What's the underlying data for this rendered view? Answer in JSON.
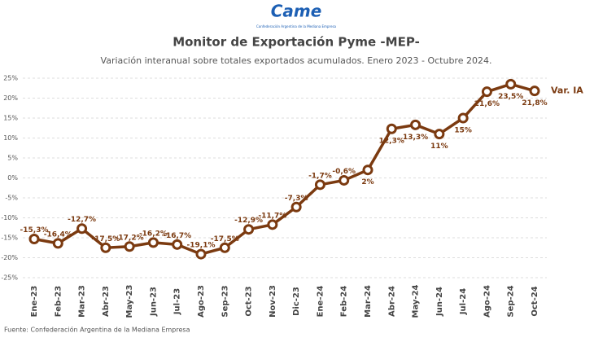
{
  "logo": {
    "name": "Came",
    "subtitle": "Confederación Argentina de la Mediana Empresa"
  },
  "chart_data": {
    "type": "line",
    "title": "Monitor de Exportación Pyme -MEP-",
    "subtitle": "Variación interanual sobre totales exportados acumulados. Enero 2023 - Octubre 2024.",
    "source": "Fuente: Confederación Argentina de la Mediana Empresa",
    "categories": [
      "Ene-23",
      "Feb-23",
      "Mar-23",
      "Abr-23",
      "May-23",
      "Jun-23",
      "Jul-23",
      "Ago-23",
      "Sep-23",
      "Oct-23",
      "Nov-23",
      "Dic-23",
      "Ene-24",
      "Feb-24",
      "Mar-24",
      "Abr-24",
      "May-24",
      "Jun-24",
      "Jul-24",
      "Ago-24",
      "Sep-24",
      "Oct-24"
    ],
    "series": [
      {
        "name": "Var. IA",
        "color": "#7b3a10",
        "values": [
          -15.3,
          -16.4,
          -12.7,
          -17.5,
          -17.2,
          -16.2,
          -16.7,
          -19.1,
          -17.5,
          -12.9,
          -11.7,
          -7.3,
          -1.7,
          -0.6,
          2,
          12.3,
          13.3,
          11,
          15,
          21.6,
          23.5,
          21.8
        ],
        "value_labels": [
          "-15,3%",
          "-16,4%",
          "-12,7%",
          "-17,5%",
          "-17,2%",
          "-16,2%",
          "-16,7%",
          "-19,1%",
          "-17,5%",
          "-12,9%",
          "-11,7%",
          "-7,3%",
          "-1,7%",
          "-0,6%",
          "2%",
          "12,3%",
          "13,3%",
          "11%",
          "15%",
          "21,6%",
          "23,5%",
          "21,8%"
        ]
      }
    ],
    "ylim": [
      -25,
      25
    ],
    "yticks": [
      {
        "value": -25,
        "label": "-25%"
      },
      {
        "value": -20,
        "label": "-20%"
      },
      {
        "value": -15,
        "label": "-15%"
      },
      {
        "value": -10,
        "label": "-10%"
      },
      {
        "value": -5,
        "label": "-5%"
      },
      {
        "value": 0,
        "label": "0%"
      },
      {
        "value": 5,
        "label": "5%"
      },
      {
        "value": 10,
        "label": "10%"
      },
      {
        "value": 15,
        "label": "15%"
      },
      {
        "value": 20,
        "label": "20%"
      },
      {
        "value": 25,
        "label": "25%"
      }
    ],
    "grid": true
  }
}
